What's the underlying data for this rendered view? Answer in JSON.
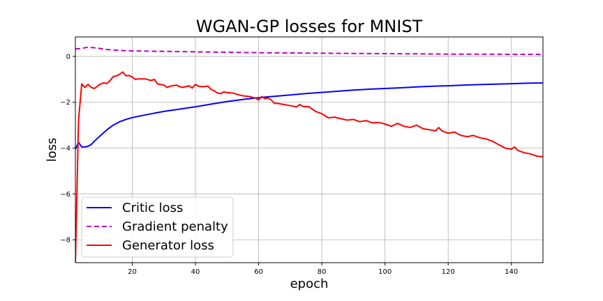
{
  "chart_data": {
    "type": "line",
    "title": "WGAN-GP losses for MNIST",
    "xlabel": "epoch",
    "ylabel": "loss",
    "xlim": [
      2,
      150
    ],
    "ylim": [
      -9,
      0.85
    ],
    "xticks": [
      20,
      40,
      60,
      80,
      100,
      120,
      140
    ],
    "yticks": [
      -8,
      -6,
      -4,
      -2,
      0
    ],
    "grid": true,
    "legend_position": "lower-left",
    "series": [
      {
        "name": "Critic loss",
        "color": "#0000ff",
        "style": "solid",
        "points": [
          [
            2,
            -4.05
          ],
          [
            3,
            -3.75
          ],
          [
            4,
            -3.95
          ],
          [
            5,
            -3.95
          ],
          [
            6,
            -3.92
          ],
          [
            7,
            -3.85
          ],
          [
            8,
            -3.7
          ],
          [
            10,
            -3.45
          ],
          [
            12,
            -3.2
          ],
          [
            14,
            -3.0
          ],
          [
            16,
            -2.85
          ],
          [
            18,
            -2.75
          ],
          [
            20,
            -2.67
          ],
          [
            25,
            -2.53
          ],
          [
            30,
            -2.4
          ],
          [
            35,
            -2.3
          ],
          [
            40,
            -2.2
          ],
          [
            45,
            -2.08
          ],
          [
            50,
            -1.97
          ],
          [
            55,
            -1.88
          ],
          [
            60,
            -1.8
          ],
          [
            65,
            -1.74
          ],
          [
            70,
            -1.68
          ],
          [
            75,
            -1.62
          ],
          [
            80,
            -1.57
          ],
          [
            85,
            -1.52
          ],
          [
            90,
            -1.47
          ],
          [
            95,
            -1.43
          ],
          [
            100,
            -1.4
          ],
          [
            105,
            -1.37
          ],
          [
            110,
            -1.33
          ],
          [
            115,
            -1.3
          ],
          [
            120,
            -1.28
          ],
          [
            125,
            -1.25
          ],
          [
            130,
            -1.23
          ],
          [
            135,
            -1.21
          ],
          [
            140,
            -1.19
          ],
          [
            145,
            -1.17
          ],
          [
            150,
            -1.16
          ]
        ]
      },
      {
        "name": "Gradient penalty",
        "color": "#bf00bf",
        "style": "dashed",
        "points": [
          [
            2,
            0.32
          ],
          [
            4,
            0.35
          ],
          [
            6,
            0.4
          ],
          [
            8,
            0.38
          ],
          [
            10,
            0.34
          ],
          [
            12,
            0.3
          ],
          [
            14,
            0.28
          ],
          [
            16,
            0.26
          ],
          [
            18,
            0.25
          ],
          [
            20,
            0.24
          ],
          [
            30,
            0.22
          ],
          [
            40,
            0.2
          ],
          [
            50,
            0.18
          ],
          [
            60,
            0.16
          ],
          [
            70,
            0.15
          ],
          [
            80,
            0.14
          ],
          [
            90,
            0.13
          ],
          [
            100,
            0.12
          ],
          [
            110,
            0.11
          ],
          [
            120,
            0.1
          ],
          [
            130,
            0.1
          ],
          [
            140,
            0.09
          ],
          [
            150,
            0.09
          ]
        ]
      },
      {
        "name": "Generator loss",
        "color": "#ff0000",
        "style": "solid",
        "points": [
          [
            2,
            -9.0
          ],
          [
            3,
            -2.8
          ],
          [
            4,
            -1.2
          ],
          [
            5,
            -1.35
          ],
          [
            6,
            -1.22
          ],
          [
            7,
            -1.35
          ],
          [
            8,
            -1.4
          ],
          [
            9,
            -1.3
          ],
          [
            10,
            -1.2
          ],
          [
            11,
            -1.15
          ],
          [
            12,
            -1.18
          ],
          [
            13,
            -1.05
          ],
          [
            14,
            -0.88
          ],
          [
            15,
            -0.85
          ],
          [
            16,
            -0.78
          ],
          [
            17,
            -0.68
          ],
          [
            18,
            -0.85
          ],
          [
            19,
            -0.83
          ],
          [
            20,
            -0.9
          ],
          [
            21,
            -1.0
          ],
          [
            22,
            -0.98
          ],
          [
            24,
            -0.98
          ],
          [
            26,
            -1.05
          ],
          [
            27,
            -1.0
          ],
          [
            28,
            -1.2
          ],
          [
            30,
            -1.25
          ],
          [
            31,
            -1.35
          ],
          [
            32,
            -1.3
          ],
          [
            34,
            -1.25
          ],
          [
            35,
            -1.32
          ],
          [
            36,
            -1.35
          ],
          [
            38,
            -1.28
          ],
          [
            39,
            -1.38
          ],
          [
            40,
            -1.22
          ],
          [
            41,
            -1.3
          ],
          [
            42,
            -1.32
          ],
          [
            44,
            -1.3
          ],
          [
            45,
            -1.45
          ],
          [
            46,
            -1.5
          ],
          [
            47,
            -1.6
          ],
          [
            48,
            -1.62
          ],
          [
            49,
            -1.55
          ],
          [
            50,
            -1.58
          ],
          [
            52,
            -1.6
          ],
          [
            53,
            -1.65
          ],
          [
            55,
            -1.72
          ],
          [
            57,
            -1.75
          ],
          [
            59,
            -1.82
          ],
          [
            60,
            -1.9
          ],
          [
            61,
            -1.75
          ],
          [
            62,
            -1.85
          ],
          [
            63,
            -1.82
          ],
          [
            64,
            -1.9
          ],
          [
            65,
            -2.05
          ],
          [
            66,
            -2.05
          ],
          [
            68,
            -2.1
          ],
          [
            70,
            -2.15
          ],
          [
            72,
            -2.2
          ],
          [
            73,
            -2.1
          ],
          [
            74,
            -2.18
          ],
          [
            76,
            -2.2
          ],
          [
            78,
            -2.4
          ],
          [
            80,
            -2.5
          ],
          [
            82,
            -2.68
          ],
          [
            84,
            -2.65
          ],
          [
            86,
            -2.72
          ],
          [
            88,
            -2.78
          ],
          [
            90,
            -2.75
          ],
          [
            92,
            -2.85
          ],
          [
            94,
            -2.8
          ],
          [
            96,
            -2.9
          ],
          [
            98,
            -2.88
          ],
          [
            100,
            -2.95
          ],
          [
            102,
            -3.05
          ],
          [
            104,
            -2.92
          ],
          [
            106,
            -3.05
          ],
          [
            108,
            -3.1
          ],
          [
            110,
            -3.0
          ],
          [
            112,
            -3.15
          ],
          [
            114,
            -3.2
          ],
          [
            116,
            -3.25
          ],
          [
            117,
            -3.1
          ],
          [
            118,
            -3.25
          ],
          [
            120,
            -3.35
          ],
          [
            122,
            -3.3
          ],
          [
            124,
            -3.45
          ],
          [
            126,
            -3.5
          ],
          [
            128,
            -3.45
          ],
          [
            130,
            -3.55
          ],
          [
            132,
            -3.6
          ],
          [
            134,
            -3.7
          ],
          [
            136,
            -3.85
          ],
          [
            138,
            -4.0
          ],
          [
            140,
            -4.05
          ],
          [
            141,
            -3.95
          ],
          [
            142,
            -4.1
          ],
          [
            144,
            -4.2
          ],
          [
            146,
            -4.25
          ],
          [
            148,
            -4.35
          ],
          [
            150,
            -4.38
          ]
        ]
      }
    ]
  }
}
